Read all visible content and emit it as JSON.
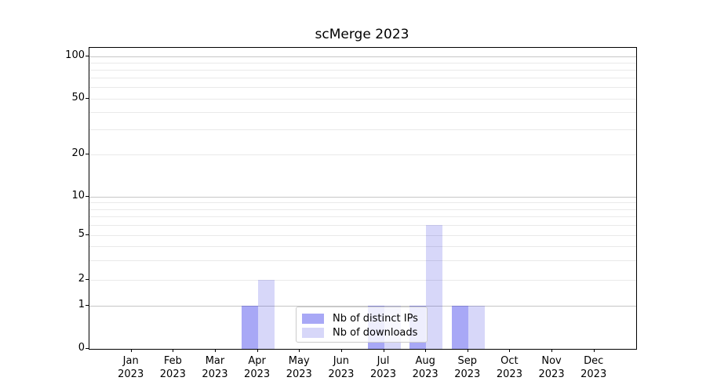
{
  "chart_data": {
    "type": "bar",
    "title": "scMerge 2023",
    "categories": [
      "Jan",
      "Feb",
      "Mar",
      "Apr",
      "May",
      "Jun",
      "Jul",
      "Aug",
      "Sep",
      "Oct",
      "Nov",
      "Dec"
    ],
    "category_year": "2023",
    "series": [
      {
        "name": "Nb of distinct IPs",
        "color": "#a8a8f6",
        "values": [
          0,
          0,
          0,
          1,
          0,
          0,
          1,
          1,
          1,
          0,
          0,
          0
        ]
      },
      {
        "name": "Nb of downloads",
        "color": "#d8d8f8",
        "values": [
          0,
          0,
          0,
          2,
          0,
          0,
          1,
          6,
          1,
          0,
          0,
          0
        ]
      }
    ],
    "y_tick_labels": [
      "0",
      "1",
      "2",
      "5",
      "10",
      "20",
      "50",
      "100"
    ],
    "y_scale": "log-like (0 baseline, log above 1)",
    "ylim": [
      0,
      115
    ],
    "grid": "both (major and minor horizontal gridlines)",
    "legend": {
      "position": "lower center"
    }
  }
}
